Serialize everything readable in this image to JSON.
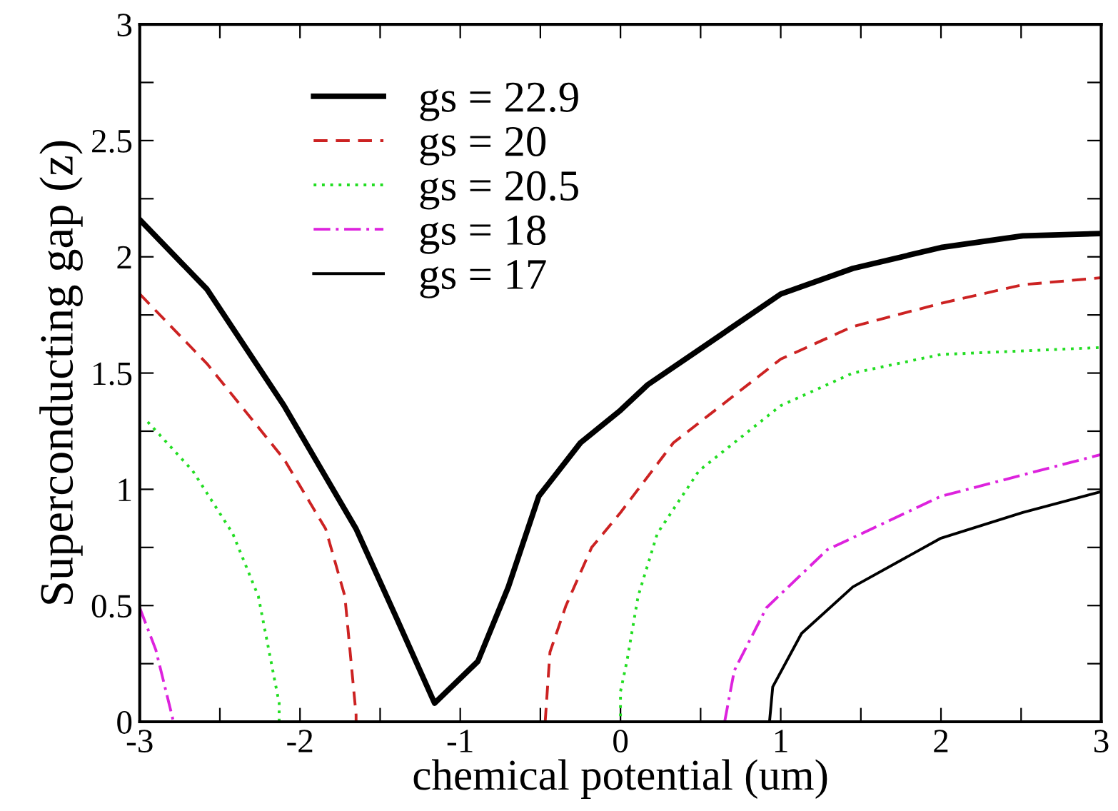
{
  "chart_data": {
    "type": "line",
    "xlabel": "chemical potential (um)",
    "ylabel": "Superconducting gap (z)",
    "xlim": [
      -3,
      3
    ],
    "ylim": [
      0,
      3
    ],
    "xticks": [
      -3,
      {
        "value": -2.5,
        "label": null
      },
      -2,
      {
        "value": -1.5,
        "label": null
      },
      -1,
      {
        "value": -0.5,
        "label": null
      },
      0,
      {
        "value": 0.5,
        "label": null
      },
      1,
      {
        "value": 1.5,
        "label": null
      },
      2,
      {
        "value": 2.5,
        "label": null
      },
      3
    ],
    "yticks": [
      0,
      {
        "value": 0.25,
        "label": null
      },
      0.5,
      {
        "value": 0.75,
        "label": null
      },
      1,
      {
        "value": 1.25,
        "label": null
      },
      1.5,
      {
        "value": 1.75,
        "label": null
      },
      2,
      {
        "value": 2.25,
        "label": null
      },
      2.5,
      {
        "value": 2.75,
        "label": null
      },
      3
    ],
    "grid": false,
    "legend": "top left",
    "marker": "none",
    "series": [
      {
        "name": "gs = 22.9",
        "color": "#000000",
        "line_style": "solid",
        "x": [
          -3,
          -2.58,
          -2.1,
          -1.65,
          -1.4,
          -1.16,
          -0.89,
          -0.7,
          -0.51,
          -0.25,
          0,
          0.17,
          0.49,
          1,
          1.45,
          2,
          2.51,
          3
        ],
        "values": [
          2.16,
          1.86,
          1.36,
          0.83,
          0.45,
          0.08,
          0.26,
          0.58,
          0.97,
          1.2,
          1.34,
          1.45,
          1.6,
          1.84,
          1.95,
          2.04,
          2.09,
          2.1
        ]
      },
      {
        "name": "gs = 20",
        "color": "#cc2222",
        "line_style": "dashed",
        "x": [
          -3,
          -2.58,
          -2.1,
          -1.84,
          -1.72,
          -1.65,
          -1.65,
          null,
          -0.47,
          -0.44,
          -0.34,
          -0.18,
          0,
          0.33,
          1,
          1.45,
          2,
          2.51,
          3
        ],
        "values": [
          1.84,
          1.54,
          1.13,
          0.83,
          0.54,
          0.03,
          0,
          null,
          0,
          0.3,
          0.5,
          0.75,
          0.9,
          1.2,
          1.56,
          1.7,
          1.8,
          1.88,
          1.91
        ]
      },
      {
        "name": "gs = 20.5",
        "color": "#22dd22",
        "line_style": "dotted",
        "x": [
          -2.95,
          -2.67,
          -2.42,
          -2.26,
          -2.13,
          -2.13,
          0,
          0,
          0.04,
          0.11,
          0.23,
          0.49,
          1,
          1.45,
          2,
          3
        ],
        "values": [
          1.29,
          1.08,
          0.81,
          0.54,
          0.08,
          0,
          0,
          0.13,
          0.26,
          0.54,
          0.81,
          1.08,
          1.36,
          1.5,
          1.58,
          1.61
        ]
      },
      {
        "name": "gs = 18",
        "color": "#dd22dd",
        "line_style": "dashdot",
        "x": [
          -3,
          -2.9,
          -2.8,
          -2.79,
          null,
          0.65,
          0.71,
          0.91,
          1.29,
          2,
          3
        ],
        "values": [
          0.49,
          0.31,
          0.03,
          0,
          null,
          0,
          0.22,
          0.49,
          0.74,
          0.97,
          1.15
        ]
      },
      {
        "name": "gs = 17",
        "color": "#000000",
        "line_style": "solid",
        "x": [
          0.93,
          0.95,
          1.13,
          1.45,
          2,
          2.51,
          3
        ],
        "values": [
          0,
          0.15,
          0.38,
          0.58,
          0.79,
          0.9,
          0.99
        ]
      }
    ]
  }
}
